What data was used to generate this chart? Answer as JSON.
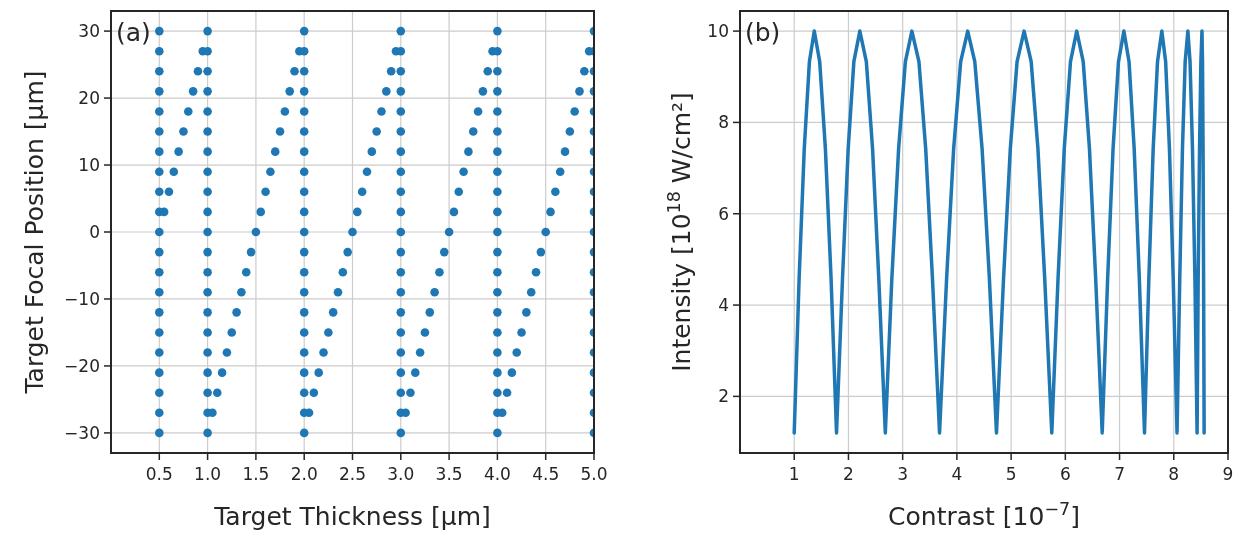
{
  "chart_data": [
    {
      "type": "scatter",
      "xlabel": "Target Thickness [μm]",
      "ylabel": "Target Focal Position [μm]",
      "annotations": [
        "(a)"
      ],
      "marker": "circle",
      "grid": true,
      "xlim": [
        0,
        5
      ],
      "ylim": [
        -33,
        33
      ],
      "xticks": [
        0.5,
        {
          "value": 1,
          "label": "1.0"
        },
        1.5,
        {
          "value": 2,
          "label": "2.0"
        },
        2.5,
        {
          "value": 3,
          "label": "3.0"
        },
        3.5,
        {
          "value": 4,
          "label": "4.0"
        },
        4.5,
        {
          "value": 5,
          "label": "5.0"
        }
      ],
      "yticks": [
        {
          "value": -30,
          "label": "−30"
        },
        {
          "value": -20,
          "label": "−20"
        },
        {
          "value": -10,
          "label": "−10"
        },
        0,
        10,
        20,
        30
      ],
      "series": [
        {
          "color": "#1f77b4",
          "x": [
            0.55,
            0.6,
            0.65,
            0.7,
            0.75,
            0.8,
            0.85,
            0.9,
            0.95
          ],
          "values": [
            3,
            6,
            9,
            12,
            15,
            18,
            21,
            24,
            27
          ]
        },
        {
          "color": "#1f77b4",
          "x": [
            1.05,
            1.1,
            1.15,
            1.2,
            1.25,
            1.3,
            1.35,
            1.4,
            1.45,
            1.5,
            1.55,
            1.6,
            1.65,
            1.7,
            1.75,
            1.8,
            1.85,
            1.9,
            1.95
          ],
          "values": [
            -27,
            -24,
            -21,
            -18,
            -15,
            -12,
            -9,
            -6,
            -3,
            0,
            3,
            6,
            9,
            12,
            15,
            18,
            21,
            24,
            27
          ]
        },
        {
          "color": "#1f77b4",
          "x": [
            2.05,
            2.1,
            2.15,
            2.2,
            2.25,
            2.3,
            2.35,
            2.4,
            2.45,
            2.5,
            2.55,
            2.6,
            2.65,
            2.7,
            2.75,
            2.8,
            2.85,
            2.9,
            2.95
          ],
          "values": [
            -27,
            -24,
            -21,
            -18,
            -15,
            -12,
            -9,
            -6,
            -3,
            0,
            3,
            6,
            9,
            12,
            15,
            18,
            21,
            24,
            27
          ]
        },
        {
          "color": "#1f77b4",
          "x": [
            3.05,
            3.1,
            3.15,
            3.2,
            3.25,
            3.3,
            3.35,
            3.4,
            3.45,
            3.5,
            3.55,
            3.6,
            3.65,
            3.7,
            3.75,
            3.8,
            3.85,
            3.9,
            3.95
          ],
          "values": [
            -27,
            -24,
            -21,
            -18,
            -15,
            -12,
            -9,
            -6,
            -3,
            0,
            3,
            6,
            9,
            12,
            15,
            18,
            21,
            24,
            27
          ]
        },
        {
          "color": "#1f77b4",
          "x": [
            4.05,
            4.1,
            4.15,
            4.2,
            4.25,
            4.3,
            4.35,
            4.4,
            4.45,
            4.5,
            4.55,
            4.6,
            4.65,
            4.7,
            4.75,
            4.8,
            4.85,
            4.9,
            4.95
          ],
          "values": [
            -27,
            -24,
            -21,
            -18,
            -15,
            -12,
            -9,
            -6,
            -3,
            0,
            3,
            6,
            9,
            12,
            15,
            18,
            21,
            24,
            27
          ]
        },
        {
          "color": "#1f77b4",
          "x": [
            0.5,
            0.5,
            0.5,
            0.5,
            0.5,
            0.5,
            0.5,
            0.5,
            0.5,
            0.5,
            0.5,
            0.5,
            0.5,
            0.5,
            0.5,
            0.5,
            0.5,
            0.5,
            0.5,
            0.5,
            0.5
          ],
          "values": [
            -30,
            -27,
            -24,
            -21,
            -18,
            -15,
            -12,
            -9,
            -6,
            -3,
            0,
            3,
            6,
            9,
            12,
            15,
            18,
            21,
            24,
            27,
            30
          ]
        },
        {
          "color": "#1f77b4",
          "x": [
            1,
            1,
            1,
            1,
            1,
            1,
            1,
            1,
            1,
            1,
            1,
            1,
            1,
            1,
            1,
            1,
            1,
            1,
            1,
            1,
            1
          ],
          "values": [
            -30,
            -27,
            -24,
            -21,
            -18,
            -15,
            -12,
            -9,
            -6,
            -3,
            0,
            3,
            6,
            9,
            12,
            15,
            18,
            21,
            24,
            27,
            30
          ]
        },
        {
          "color": "#1f77b4",
          "x": [
            2,
            2,
            2,
            2,
            2,
            2,
            2,
            2,
            2,
            2,
            2,
            2,
            2,
            2,
            2,
            2,
            2,
            2,
            2,
            2,
            2
          ],
          "values": [
            -30,
            -27,
            -24,
            -21,
            -18,
            -15,
            -12,
            -9,
            -6,
            -3,
            0,
            3,
            6,
            9,
            12,
            15,
            18,
            21,
            24,
            27,
            30
          ]
        },
        {
          "color": "#1f77b4",
          "x": [
            3,
            3,
            3,
            3,
            3,
            3,
            3,
            3,
            3,
            3,
            3,
            3,
            3,
            3,
            3,
            3,
            3,
            3,
            3,
            3,
            3
          ],
          "values": [
            -30,
            -27,
            -24,
            -21,
            -18,
            -15,
            -12,
            -9,
            -6,
            -3,
            0,
            3,
            6,
            9,
            12,
            15,
            18,
            21,
            24,
            27,
            30
          ]
        },
        {
          "color": "#1f77b4",
          "x": [
            4,
            4,
            4,
            4,
            4,
            4,
            4,
            4,
            4,
            4,
            4,
            4,
            4,
            4,
            4,
            4,
            4,
            4,
            4,
            4,
            4
          ],
          "values": [
            -30,
            -27,
            -24,
            -21,
            -18,
            -15,
            -12,
            -9,
            -6,
            -3,
            0,
            3,
            6,
            9,
            12,
            15,
            18,
            21,
            24,
            27,
            30
          ]
        },
        {
          "color": "#1f77b4",
          "x": [
            5,
            5,
            5,
            5,
            5,
            5,
            5,
            5,
            5,
            5,
            5,
            5,
            5,
            5,
            5,
            5,
            5,
            5,
            5,
            5,
            5
          ],
          "values": [
            -30,
            -27,
            -24,
            -21,
            -18,
            -15,
            -12,
            -9,
            -6,
            -3,
            0,
            3,
            6,
            9,
            12,
            15,
            18,
            21,
            24,
            27,
            30
          ]
        }
      ]
    },
    {
      "type": "line",
      "xlabel": "Contrast [10$^{−7}$]",
      "ylabel": "Intensity [10$^{18}$ W/cm²]",
      "annotations": [
        "(b)"
      ],
      "grid": true,
      "line_style": "solid",
      "xlim": [
        0,
        9
      ],
      "ylim": [
        0.76,
        10.44
      ],
      "xticks": [
        1,
        2,
        3,
        4,
        5,
        6,
        7,
        8,
        9
      ],
      "yticks": [
        2,
        4,
        6,
        8,
        10
      ],
      "series": [
        {
          "color": "#1f77b4",
          "x": [
            1.0,
            1.09,
            1.185,
            1.28,
            1.37,
            1.47,
            1.575,
            1.68,
            1.78,
            1.89,
            1.995,
            2.1,
            2.21,
            2.33,
            2.445,
            2.56,
            2.68,
            2.8,
            2.925,
            3.05,
            3.17,
            3.3,
            3.425,
            3.55,
            3.68,
            3.81,
            3.94,
            4.07,
            4.2,
            4.33,
            4.465,
            4.6,
            4.73,
            4.86,
            4.985,
            5.11,
            5.24,
            5.37,
            5.495,
            5.62,
            5.75,
            5.865,
            5.98,
            6.095,
            6.21,
            6.33,
            6.445,
            6.56,
            6.68,
            6.78,
            6.88,
            6.98,
            7.08,
            7.175,
            7.27,
            7.365,
            7.46,
            7.54,
            7.62,
            7.7,
            7.78,
            7.85,
            7.92,
            7.99,
            8.06,
            8.11,
            8.16,
            8.21,
            8.26,
            8.3,
            8.345,
            8.39,
            8.43,
            8.45,
            8.475,
            8.5,
            8.52,
            8.53,
            8.54,
            8.55,
            8.56
          ],
          "values": [
            1.2,
            4.57,
            7.42,
            9.33,
            10,
            9.33,
            7.42,
            4.57,
            1.2,
            4.57,
            7.42,
            9.33,
            10,
            9.33,
            7.42,
            4.57,
            1.2,
            4.57,
            7.42,
            9.33,
            10,
            9.33,
            7.42,
            4.57,
            1.2,
            4.57,
            7.42,
            9.33,
            10,
            9.33,
            7.42,
            4.57,
            1.2,
            4.57,
            7.42,
            9.33,
            10,
            9.33,
            7.42,
            4.57,
            1.2,
            4.57,
            7.42,
            9.33,
            10,
            9.33,
            7.42,
            4.57,
            1.2,
            4.57,
            7.42,
            9.33,
            10,
            9.33,
            7.42,
            4.57,
            1.2,
            4.57,
            7.42,
            9.33,
            10,
            9.33,
            7.42,
            4.57,
            1.2,
            4.57,
            7.42,
            9.33,
            10,
            9.33,
            7.42,
            4.57,
            1.2,
            4.57,
            7.42,
            9.33,
            10,
            9.33,
            7.42,
            4.57,
            1.2
          ]
        }
      ]
    }
  ]
}
